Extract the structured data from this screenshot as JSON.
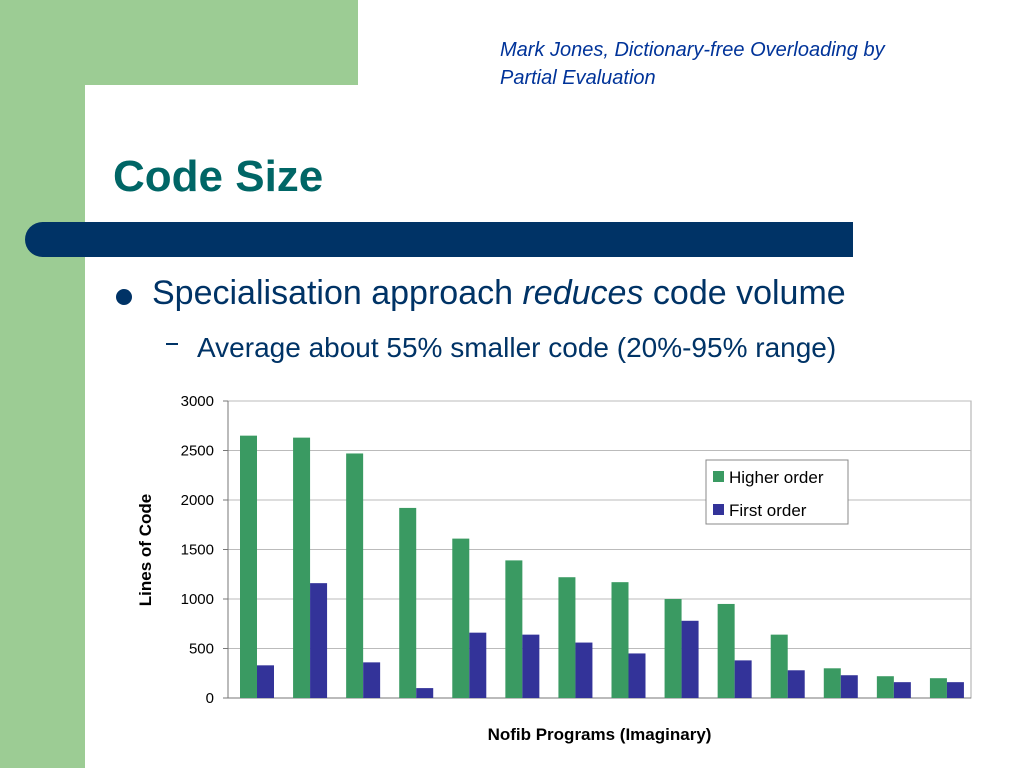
{
  "citation": [
    "Mark Jones, Dictionary-free Overloading by",
    "Partial Evaluation"
  ],
  "title": "Code Size",
  "bullets": [
    [
      "Specialisation approach",
      "reduces",
      "code volume"
    ],
    "Average about 55% smaller code (20%-95% range)"
  ],
  "chart_data": {
    "type": "bar",
    "x_label": "Nofib Programs (Imaginary)",
    "y_label": "Lines of Code",
    "categories": [
      null,
      null,
      null,
      null,
      null,
      null,
      null,
      null,
      null,
      null,
      null,
      null,
      null,
      null
    ],
    "series": [
      {
        "name": "Higher order",
        "color": "#3a9a62",
        "values": [
          2650,
          2630,
          2470,
          1920,
          1610,
          1390,
          1220,
          1170,
          1000,
          950,
          640,
          300,
          220,
          200
        ]
      },
      {
        "name": "First order",
        "color": "#333399",
        "values": [
          330,
          1160,
          360,
          100,
          660,
          640,
          560,
          450,
          780,
          380,
          280,
          230,
          160,
          160
        ]
      }
    ],
    "ylim": [
      0,
      3000
    ],
    "yticks": [
      0,
      500,
      1000,
      1500,
      2000,
      2500,
      3000
    ],
    "grid": true,
    "legend": "right"
  }
}
